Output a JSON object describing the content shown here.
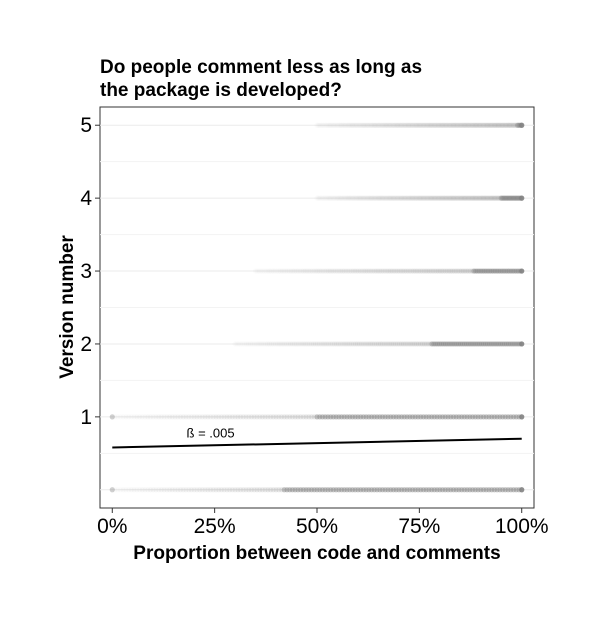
{
  "chart_data": {
    "type": "scatter",
    "title": [
      "Do people comment less as long as",
      "the package is developed?"
    ],
    "xlabel": "Proportion between code and comments",
    "ylabel": "Version number",
    "xlim": [
      -0.03,
      1.03
    ],
    "ylim": [
      -0.25,
      5.25
    ],
    "x_ticks": [
      {
        "value": 0,
        "label": "0%"
      },
      {
        "value": 0.25,
        "label": "25%"
      },
      {
        "value": 0.5,
        "label": "50%"
      },
      {
        "value": 0.75,
        "label": "75%"
      },
      {
        "value": 1,
        "label": "100%"
      }
    ],
    "y_ticks": [
      {
        "value": 1,
        "label": "1"
      },
      {
        "value": 2,
        "label": "2"
      },
      {
        "value": 3,
        "label": "3"
      },
      {
        "value": 4,
        "label": "4"
      },
      {
        "value": 5,
        "label": "5"
      }
    ],
    "grid": true,
    "point_color": "#808080",
    "point_rows": [
      {
        "y": 0,
        "min_x": 0.0,
        "dense_from": 0.42
      },
      {
        "y": 1,
        "min_x": 0.0,
        "dense_from": 0.5
      },
      {
        "y": 2,
        "min_x": 0.3,
        "dense_from": 0.78
      },
      {
        "y": 3,
        "min_x": 0.35,
        "dense_from": 0.88
      },
      {
        "y": 4,
        "min_x": 0.5,
        "dense_from": 0.95
      },
      {
        "y": 5,
        "min_x": 0.5,
        "dense_from": 0.99
      }
    ],
    "fit_line": {
      "x": [
        0,
        1
      ],
      "y": [
        0.58,
        0.7
      ]
    },
    "annotation": {
      "text": "ß = .005",
      "x": 0.24,
      "y": 0.72
    }
  }
}
